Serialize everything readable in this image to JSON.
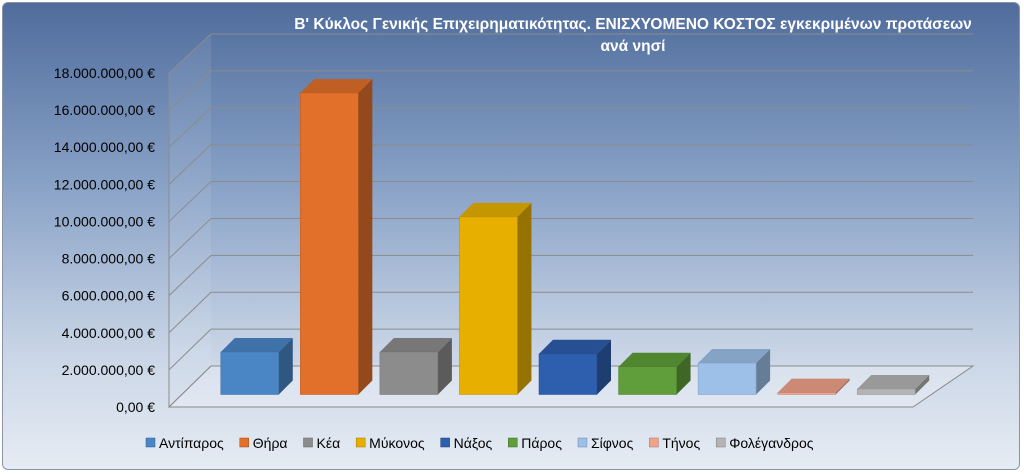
{
  "chart_data": {
    "type": "bar",
    "title_line1": "Β' Κύκλος Γενικής Επιχειρηματικότητας. ΕΝΙΣΧΥΟΜΕΝΟ ΚΟΣΤΟΣ εγκεκριμένων προτάσεων",
    "title_line2": "ανά νησί",
    "categories": [
      "Αντίπαρος",
      "Θήρα",
      "Κέα",
      "Μύκονος",
      "Νάξος",
      "Πάρος",
      "Σίφνος",
      "Τήνος",
      "Φολέγανδρος"
    ],
    "values": [
      2300000,
      16300000,
      2300000,
      9600000,
      2200000,
      1500000,
      1700000,
      100000,
      300000
    ],
    "colors": [
      "#4a86c6",
      "#e2702a",
      "#8c8c8c",
      "#e7b000",
      "#2e5eae",
      "#5f9e3a",
      "#9dc0e8",
      "#f0a28a",
      "#b4b4b4"
    ],
    "y_ticks": [
      "0,00 €",
      "2.000.000,00 €",
      "4.000.000,00 €",
      "6.000.000,00 €",
      "8.000.000,00 €",
      "10.000.000,00 €",
      "12.000.000,00 €",
      "14.000.000,00 €",
      "16.000.000,00 €",
      "18.000.000,00 €"
    ],
    "ylim": [
      0,
      18000000
    ],
    "grid": true,
    "legend_position": "bottom",
    "legend": [
      "Αντίπαρος",
      "Θήρα",
      "Κέα",
      "Μύκονος",
      "Νάξος",
      "Πάρος",
      "Σίφνος",
      "Τήνος",
      "Φολέγανδρος"
    ]
  }
}
